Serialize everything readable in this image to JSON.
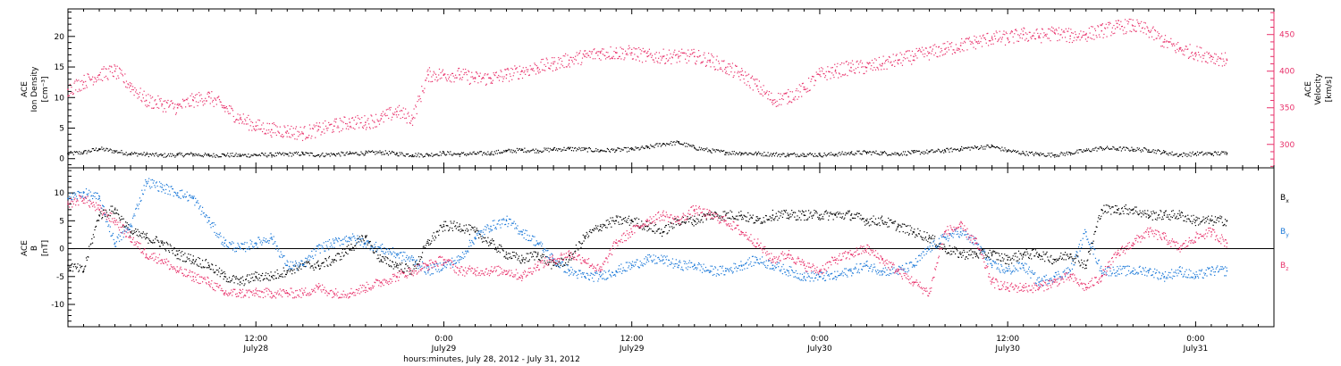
{
  "figure": {
    "xlabel": "hours:minutes, July 28, 2012 - July 31, 2012",
    "x_ticks": [
      {
        "hour": 12,
        "time": "12:00",
        "date": "July28"
      },
      {
        "hour": 24,
        "time": "0:00",
        "date": "July29"
      },
      {
        "hour": 36,
        "time": "12:00",
        "date": "July29"
      },
      {
        "hour": 48,
        "time": "0:00",
        "date": "July30"
      },
      {
        "hour": 60,
        "time": "12:00",
        "date": "July30"
      },
      {
        "hour": 72,
        "time": "0:00",
        "date": "July31"
      }
    ]
  },
  "colors": {
    "black": "#000000",
    "red": "#e8306a",
    "blue": "#1a78d8"
  },
  "chart_data": [
    {
      "type": "scatter",
      "panel": "top",
      "ylabel_left": [
        "ACE",
        "Ion Density",
        "[cm⁻³]"
      ],
      "ylabel_right": [
        "ACE",
        "Velocity",
        "[km/s]"
      ],
      "x_units": "hours since 2012-07-28 00:00 UT",
      "xlim": [
        0,
        77
      ],
      "ylim_left": [
        -1.5,
        24.5
      ],
      "ylim_right": [
        268,
        485
      ],
      "yticks_left": [
        0,
        5,
        10,
        15,
        20
      ],
      "yticks_right": [
        300,
        350,
        400,
        450
      ],
      "series": [
        {
          "name": "Ion Density",
          "axis": "left",
          "color": "#000000",
          "x": [
            0,
            1,
            2,
            3,
            4,
            5,
            6,
            7,
            8,
            9,
            10,
            11,
            12,
            13,
            14,
            15,
            16,
            17,
            18,
            19,
            20,
            21,
            22,
            23,
            24,
            25,
            26,
            27,
            28,
            29,
            30,
            31,
            32,
            33,
            34,
            35,
            36,
            37,
            38,
            39,
            40,
            41,
            42,
            43,
            44,
            45,
            46,
            47,
            48,
            49,
            50,
            51,
            52,
            53,
            54,
            55,
            56,
            57,
            58,
            59,
            60,
            61,
            62,
            63,
            64,
            65,
            66,
            67,
            68,
            69,
            70,
            71,
            72,
            73,
            74
          ],
          "y": [
            0.8,
            1.0,
            1.6,
            1.2,
            0.8,
            0.7,
            0.5,
            0.6,
            0.7,
            0.5,
            0.6,
            0.5,
            0.6,
            0.6,
            0.7,
            0.8,
            0.6,
            0.7,
            0.8,
            0.9,
            1.0,
            0.8,
            0.6,
            0.6,
            0.9,
            0.7,
            0.8,
            0.9,
            1.2,
            1.4,
            1.3,
            1.5,
            1.6,
            1.5,
            1.3,
            1.4,
            1.5,
            1.8,
            2.4,
            2.6,
            1.8,
            1.3,
            1.0,
            0.9,
            0.8,
            0.7,
            0.6,
            0.7,
            0.6,
            0.7,
            0.9,
            1.0,
            0.9,
            0.8,
            1.0,
            1.1,
            1.3,
            1.6,
            1.8,
            2.0,
            1.3,
            0.9,
            0.7,
            0.6,
            0.9,
            1.3,
            1.7,
            1.6,
            1.5,
            1.4,
            1.0,
            0.6,
            0.8,
            0.8,
            0.9
          ]
        },
        {
          "name": "Velocity",
          "axis": "right",
          "color": "#e8306a",
          "x": [
            0,
            1,
            2,
            3,
            4,
            5,
            6,
            7,
            8,
            9,
            10,
            11,
            12,
            13,
            14,
            15,
            16,
            17,
            18,
            19,
            20,
            21,
            22,
            23,
            24,
            25,
            26,
            27,
            28,
            29,
            30,
            31,
            32,
            33,
            34,
            35,
            36,
            37,
            38,
            39,
            40,
            41,
            42,
            43,
            44,
            45,
            46,
            47,
            48,
            49,
            50,
            51,
            52,
            53,
            54,
            55,
            56,
            57,
            58,
            59,
            60,
            61,
            62,
            63,
            64,
            65,
            66,
            67,
            68,
            69,
            70,
            71,
            72,
            73,
            74
          ],
          "y": [
            375,
            385,
            395,
            400,
            380,
            360,
            355,
            350,
            360,
            365,
            350,
            335,
            325,
            320,
            318,
            315,
            320,
            325,
            330,
            330,
            335,
            345,
            335,
            395,
            395,
            395,
            390,
            390,
            395,
            400,
            405,
            410,
            415,
            420,
            425,
            425,
            425,
            420,
            420,
            420,
            420,
            415,
            405,
            395,
            380,
            360,
            365,
            375,
            395,
            400,
            405,
            405,
            410,
            415,
            420,
            425,
            430,
            435,
            440,
            445,
            445,
            450,
            448,
            452,
            448,
            450,
            455,
            460,
            462,
            455,
            440,
            430,
            425,
            420,
            415
          ]
        }
      ]
    },
    {
      "type": "scatter",
      "panel": "bottom",
      "ylabel_left": [
        "ACE",
        "B",
        "[nT]"
      ],
      "x_units": "hours since 2012-07-28 00:00 UT",
      "xlim": [
        0,
        77
      ],
      "ylim": [
        -14,
        14.5
      ],
      "yticks": [
        -10,
        -5,
        0,
        5,
        10
      ],
      "zero_line": true,
      "series": [
        {
          "name": "Bx",
          "label_main": "B",
          "label_sub": "x",
          "color": "#000000",
          "x": [
            0,
            1,
            2,
            3,
            4,
            5,
            6,
            7,
            8,
            9,
            10,
            11,
            12,
            13,
            14,
            15,
            16,
            17,
            18,
            19,
            20,
            21,
            22,
            23,
            24,
            25,
            26,
            27,
            28,
            29,
            30,
            31,
            32,
            33,
            34,
            35,
            36,
            37,
            38,
            39,
            40,
            41,
            42,
            43,
            44,
            45,
            46,
            47,
            48,
            49,
            50,
            51,
            52,
            53,
            54,
            55,
            56,
            57,
            58,
            59,
            60,
            61,
            62,
            63,
            64,
            65,
            66,
            67,
            68,
            69,
            70,
            71,
            72,
            73,
            74
          ],
          "y": [
            -3,
            -4,
            6,
            7,
            3,
            2,
            1,
            -1,
            -2,
            -3,
            -5,
            -6,
            -5,
            -5,
            -4,
            -3,
            -3,
            -2,
            0,
            2,
            -2,
            -3,
            -4,
            1,
            4,
            4,
            3,
            1,
            -1,
            -2,
            -1,
            -3,
            -2,
            2,
            4,
            5,
            5,
            4,
            3,
            5,
            5,
            6,
            6,
            6,
            5,
            6,
            6,
            6,
            6,
            6,
            6,
            5,
            5,
            4,
            3,
            2,
            0,
            -1,
            -1,
            -1,
            -2,
            -1,
            -1,
            -2,
            -1,
            -3,
            7,
            7,
            7,
            6,
            6,
            6,
            5,
            5,
            5
          ]
        },
        {
          "name": "By",
          "label_main": "B",
          "label_sub": "y",
          "color": "#1a78d8",
          "x": [
            0,
            1,
            2,
            3,
            4,
            5,
            6,
            7,
            8,
            9,
            10,
            11,
            12,
            13,
            14,
            15,
            16,
            17,
            18,
            19,
            20,
            21,
            22,
            23,
            24,
            25,
            26,
            27,
            28,
            29,
            30,
            31,
            32,
            33,
            34,
            35,
            36,
            37,
            38,
            39,
            40,
            41,
            42,
            43,
            44,
            45,
            46,
            47,
            48,
            49,
            50,
            51,
            52,
            53,
            54,
            55,
            56,
            57,
            58,
            59,
            60,
            61,
            62,
            63,
            64,
            65,
            66,
            67,
            68,
            69,
            70,
            71,
            72,
            73,
            74
          ],
          "y": [
            9,
            10,
            9,
            1,
            4,
            12,
            11,
            10,
            9,
            5,
            1,
            0,
            1,
            2,
            -3,
            -3,
            0,
            1,
            2,
            1,
            0,
            -1,
            -2,
            -4,
            -3,
            -2,
            2,
            4,
            5,
            3,
            1,
            -2,
            -4,
            -5,
            -5,
            -4,
            -3,
            -2,
            -2,
            -3,
            -3,
            -4,
            -4,
            -3,
            -2,
            -3,
            -4,
            -5,
            -5,
            -5,
            -4,
            -3,
            -4,
            -4,
            -3,
            0,
            2,
            3,
            1,
            -3,
            -4,
            -3,
            -6,
            -5,
            -4,
            3,
            -4,
            -4,
            -4,
            -4,
            -5,
            -4,
            -5,
            -4,
            -4
          ]
        },
        {
          "name": "Bz",
          "label_main": "B",
          "label_sub": "z",
          "color": "#e8306a",
          "x": [
            0,
            1,
            2,
            3,
            4,
            5,
            6,
            7,
            8,
            9,
            10,
            11,
            12,
            13,
            14,
            15,
            16,
            17,
            18,
            19,
            20,
            21,
            22,
            23,
            24,
            25,
            26,
            27,
            28,
            29,
            30,
            31,
            32,
            33,
            34,
            35,
            36,
            37,
            38,
            39,
            40,
            41,
            42,
            43,
            44,
            45,
            46,
            47,
            48,
            49,
            50,
            51,
            52,
            53,
            54,
            55,
            56,
            57,
            58,
            59,
            60,
            61,
            62,
            63,
            64,
            65,
            66,
            67,
            68,
            69,
            70,
            71,
            72,
            73,
            74
          ],
          "y": [
            8,
            9,
            7,
            5,
            2,
            -1,
            -2,
            -4,
            -5,
            -6,
            -8,
            -8,
            -8,
            -8,
            -8,
            -8,
            -7,
            -8,
            -8,
            -7,
            -6,
            -5,
            -4,
            -3,
            -2,
            -4,
            -4,
            -4,
            -4,
            -5,
            -3,
            -2,
            -1,
            -2,
            -4,
            1,
            3,
            5,
            6,
            5,
            7,
            6,
            5,
            3,
            1,
            -2,
            -1,
            -3,
            -4,
            -2,
            -1,
            0,
            -2,
            -4,
            -6,
            -8,
            3,
            4,
            1,
            -6,
            -7,
            -7,
            -7,
            -6,
            -5,
            -7,
            -5,
            -1,
            1,
            3,
            2,
            0,
            2,
            3,
            1
          ]
        }
      ]
    }
  ]
}
